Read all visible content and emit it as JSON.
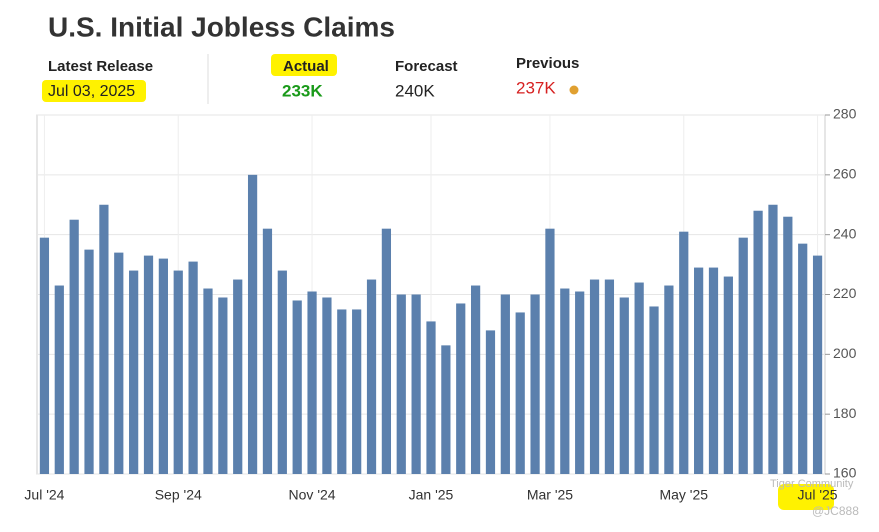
{
  "header": {
    "title": "U.S. Initial Jobless Claims",
    "latest_label": "Latest Release",
    "latest_date": "Jul 03, 2025",
    "actual_label": "Actual",
    "actual_value": "233K",
    "forecast_label": "Forecast",
    "forecast_value": "240K",
    "previous_label": "Previous",
    "previous_value": "237K"
  },
  "watermark": [
    "Tiger Community",
    "@JC888"
  ],
  "chart_data": {
    "type": "bar",
    "color": "#5b80ad",
    "categories": [
      "Jul '24",
      null,
      null,
      null,
      null,
      null,
      null,
      null,
      null,
      "Sep '24",
      null,
      null,
      null,
      null,
      null,
      null,
      null,
      null,
      "Nov '24",
      null,
      null,
      null,
      null,
      null,
      null,
      null,
      "Jan '25",
      null,
      null,
      null,
      null,
      null,
      null,
      null,
      "Mar '25",
      null,
      null,
      null,
      null,
      null,
      null,
      null,
      null,
      "May '25",
      null,
      null,
      null,
      null,
      null,
      null,
      null,
      null,
      "Jul '25"
    ],
    "values": [
      239,
      223,
      245,
      235,
      250,
      234,
      228,
      233,
      232,
      228,
      231,
      222,
      219,
      225,
      260,
      242,
      228,
      218,
      221,
      219,
      215,
      215,
      225,
      242,
      220,
      220,
      211,
      203,
      217,
      223,
      208,
      220,
      214,
      220,
      242,
      222,
      221,
      225,
      225,
      219,
      224,
      216,
      223,
      241,
      229,
      229,
      226,
      239,
      248,
      250,
      246,
      237,
      233
    ],
    "ylim": [
      160,
      280
    ],
    "yticks": [
      160,
      180,
      200,
      220,
      240,
      260,
      280
    ],
    "grid": true
  }
}
